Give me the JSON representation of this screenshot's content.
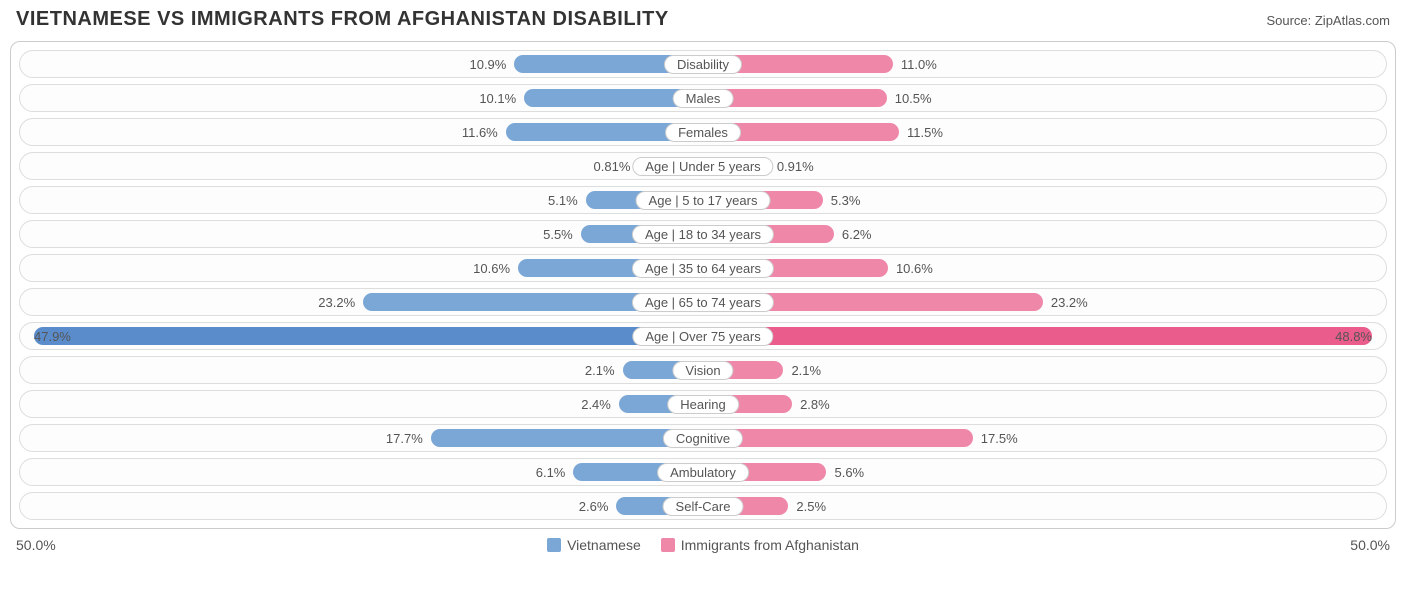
{
  "title": "VIETNAMESE VS IMMIGRANTS FROM AFGHANISTAN DISABILITY",
  "source": "Source: ZipAtlas.com",
  "axis_max": 50.0,
  "axis_label_left": "50.0%",
  "axis_label_right": "50.0%",
  "colors": {
    "left_bar": "#7ba7d7",
    "left_bar_full": "#5a8ccc",
    "right_bar": "#ef87a9",
    "right_bar_full": "#ea5c8b",
    "row_border": "#dddddd",
    "panel_border": "#cccccc",
    "text": "#555555",
    "title_text": "#333333",
    "bg": "#ffffff"
  },
  "legend": {
    "left": {
      "label": "Vietnamese",
      "color": "#7ba7d7"
    },
    "right": {
      "label": "Immigrants from Afghanistan",
      "color": "#ef87a9"
    }
  },
  "rows": [
    {
      "category": "Disability",
      "left_val": 10.9,
      "left_label": "10.9%",
      "right_val": 11.0,
      "right_label": "11.0%"
    },
    {
      "category": "Males",
      "left_val": 10.1,
      "left_label": "10.1%",
      "right_val": 10.5,
      "right_label": "10.5%"
    },
    {
      "category": "Females",
      "left_val": 11.6,
      "left_label": "11.6%",
      "right_val": 11.5,
      "right_label": "11.5%"
    },
    {
      "category": "Age | Under 5 years",
      "left_val": 0.81,
      "left_label": "0.81%",
      "right_val": 0.91,
      "right_label": "0.91%"
    },
    {
      "category": "Age | 5 to 17 years",
      "left_val": 5.1,
      "left_label": "5.1%",
      "right_val": 5.3,
      "right_label": "5.3%"
    },
    {
      "category": "Age | 18 to 34 years",
      "left_val": 5.5,
      "left_label": "5.5%",
      "right_val": 6.2,
      "right_label": "6.2%"
    },
    {
      "category": "Age | 35 to 64 years",
      "left_val": 10.6,
      "left_label": "10.6%",
      "right_val": 10.6,
      "right_label": "10.6%"
    },
    {
      "category": "Age | 65 to 74 years",
      "left_val": 23.2,
      "left_label": "23.2%",
      "right_val": 23.2,
      "right_label": "23.2%"
    },
    {
      "category": "Age | Over 75 years",
      "left_val": 47.9,
      "left_label": "47.9%",
      "right_val": 48.8,
      "right_label": "48.8%"
    },
    {
      "category": "Vision",
      "left_val": 2.1,
      "left_label": "2.1%",
      "right_val": 2.1,
      "right_label": "2.1%"
    },
    {
      "category": "Hearing",
      "left_val": 2.4,
      "left_label": "2.4%",
      "right_val": 2.8,
      "right_label": "2.8%"
    },
    {
      "category": "Cognitive",
      "left_val": 17.7,
      "left_label": "17.7%",
      "right_val": 17.5,
      "right_label": "17.5%"
    },
    {
      "category": "Ambulatory",
      "left_val": 6.1,
      "left_label": "6.1%",
      "right_val": 5.6,
      "right_label": "5.6%"
    },
    {
      "category": "Self-Care",
      "left_val": 2.6,
      "left_label": "2.6%",
      "right_val": 2.5,
      "right_label": "2.5%"
    }
  ]
}
